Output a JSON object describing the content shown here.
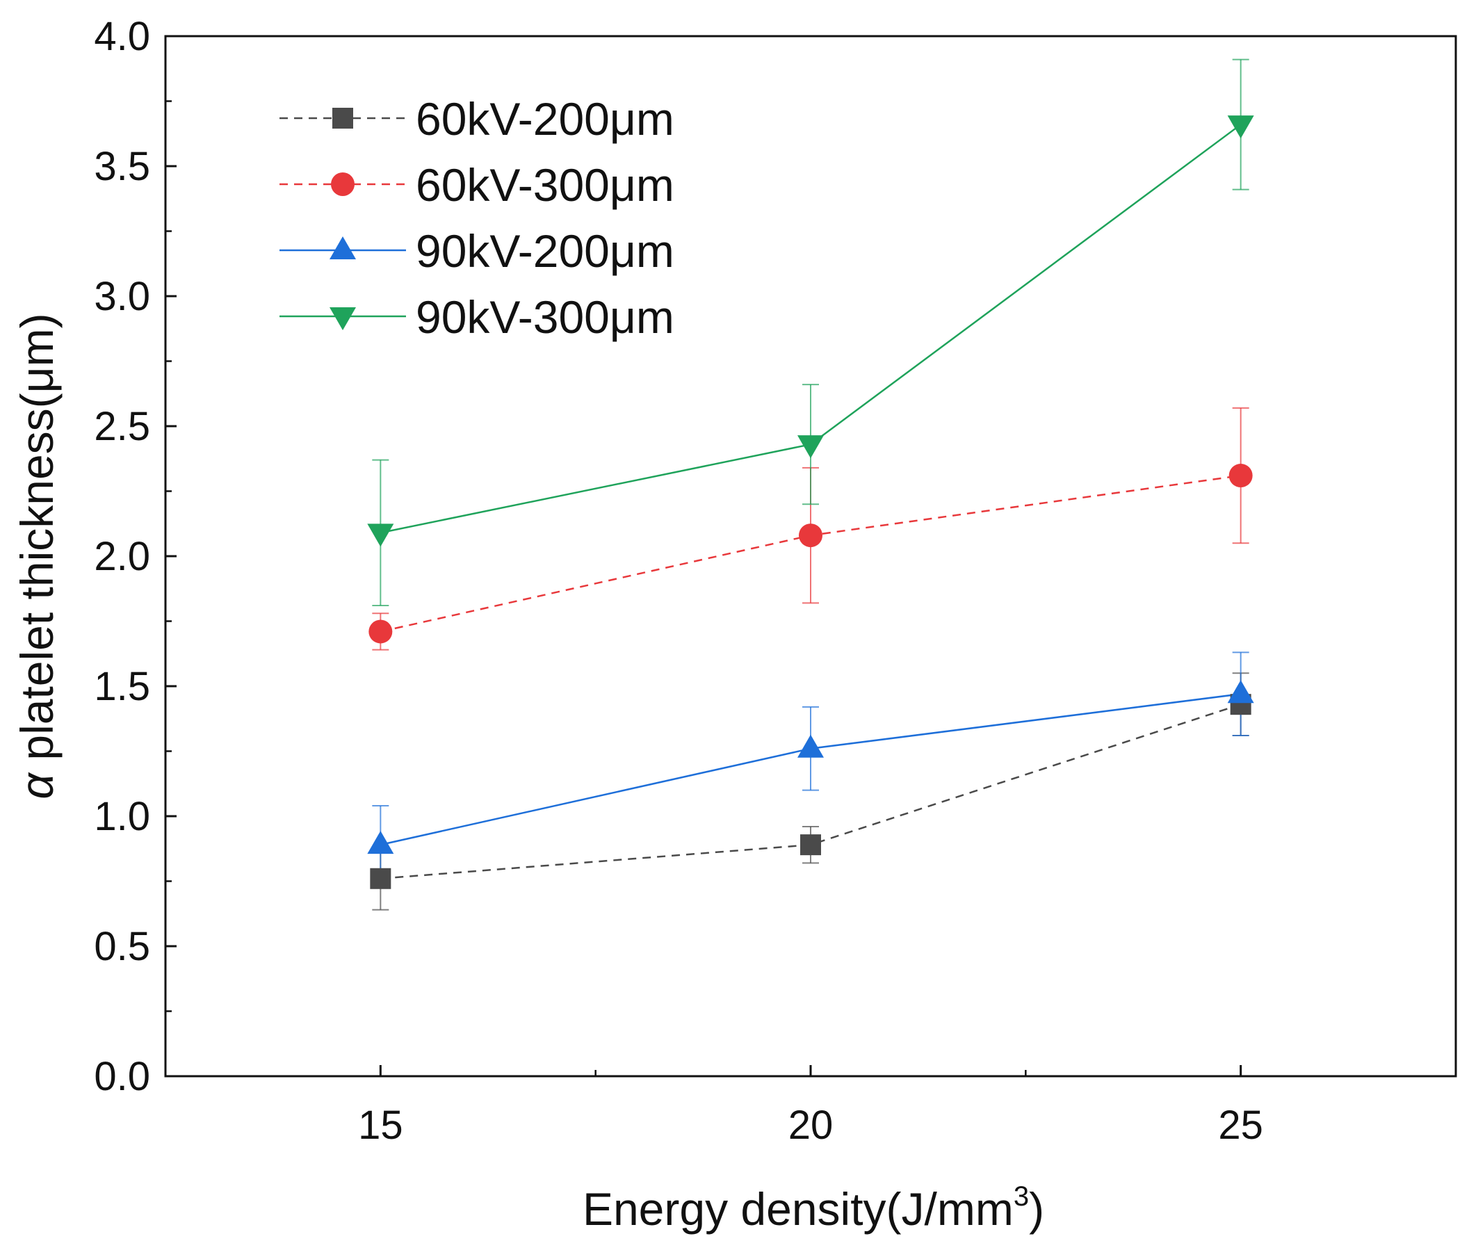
{
  "chart_data": {
    "type": "line",
    "title": "",
    "xlabel_main": "Energy density(J/mm",
    "xlabel_sup": "3",
    "xlabel_close": ")",
    "ylabel_greek": "α",
    "ylabel_rest": " platelet thickness(μm)",
    "x": [
      15,
      20,
      25
    ],
    "xlim": [
      12.5,
      27.5
    ],
    "ylim": [
      0,
      4.0
    ],
    "xticks": [
      15,
      20,
      25
    ],
    "xtick_labels": [
      "15",
      "20",
      "25"
    ],
    "x_minor_ticks": [
      17.5,
      22.5
    ],
    "yticks": [
      0,
      0.5,
      1.0,
      1.5,
      2.0,
      2.5,
      3.0,
      3.5,
      4.0
    ],
    "ytick_labels": [
      "0.0",
      "0.5",
      "1.0",
      "1.5",
      "2.0",
      "2.5",
      "3.0",
      "3.5",
      "4.0"
    ],
    "y_minor_ticks": [
      0.25,
      0.75,
      1.25,
      1.75,
      2.25,
      2.75,
      3.25,
      3.75
    ],
    "grid": false,
    "legend_position": "top-left",
    "series": [
      {
        "name": "60kV-200μm",
        "color": "#4a4a4a",
        "marker": "square",
        "line_style": "dashed",
        "values": [
          0.76,
          0.89,
          1.43
        ],
        "error": [
          0.12,
          0.07,
          0.12
        ]
      },
      {
        "name": "60kV-300μm",
        "color": "#e8383b",
        "marker": "circle",
        "line_style": "dashed",
        "values": [
          1.71,
          2.08,
          2.31
        ],
        "error": [
          0.07,
          0.26,
          0.26
        ]
      },
      {
        "name": "90kV-200μm",
        "color": "#1e6fd9",
        "marker": "triangle-up",
        "line_style": "solid",
        "values": [
          0.89,
          1.26,
          1.47
        ],
        "error": [
          0.15,
          0.16,
          0.16
        ]
      },
      {
        "name": "90kV-300μm",
        "color": "#1fa35b",
        "marker": "triangle-down",
        "line_style": "solid",
        "values": [
          2.09,
          2.43,
          3.66
        ],
        "error": [
          0.28,
          0.23,
          0.25
        ]
      }
    ]
  }
}
